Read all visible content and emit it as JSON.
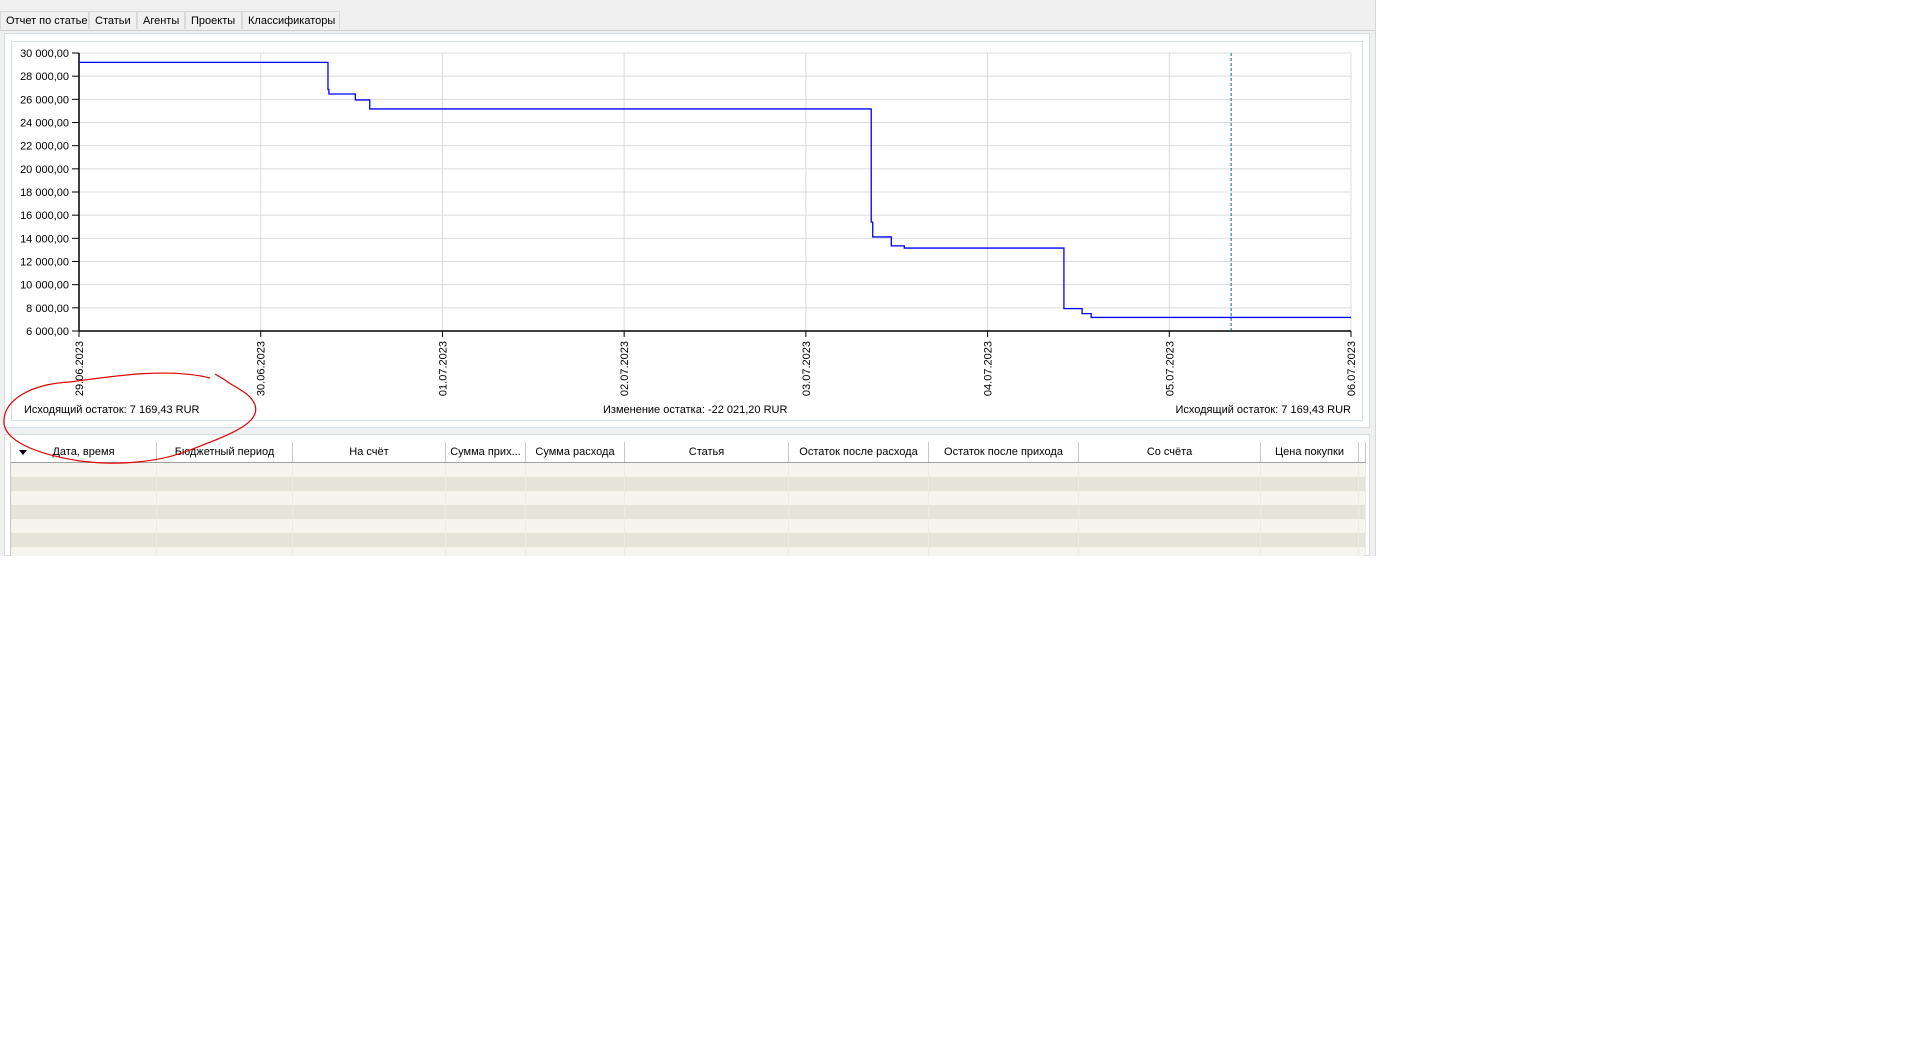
{
  "tabs": [
    {
      "label": "Отчет по статье",
      "active": false
    },
    {
      "label": "Статьи",
      "active": false
    },
    {
      "label": "Агенты",
      "active": false
    },
    {
      "label": "Проекты",
      "active": false
    },
    {
      "label": "Классификаторы",
      "active": false
    }
  ],
  "chart_data": {
    "type": "line",
    "step": true,
    "title": "",
    "xlabel": "",
    "ylabel": "",
    "ylim": [
      6000,
      30000
    ],
    "y_ticks": [
      "30 000,00",
      "28 000,00",
      "26 000,00",
      "24 000,00",
      "22 000,00",
      "20 000,00",
      "18 000,00",
      "16 000,00",
      "14 000,00",
      "12 000,00",
      "10 000,00",
      "8 000,00",
      "6 000,00"
    ],
    "y_tick_values": [
      30000,
      28000,
      26000,
      24000,
      22000,
      20000,
      18000,
      16000,
      14000,
      12000,
      10000,
      8000,
      6000
    ],
    "x_ticks": [
      "29.06.2023",
      "30.06.2023",
      "01.07.2023",
      "02.07.2023",
      "03.07.2023",
      "04.07.2023",
      "05.07.2023",
      "06.07.2023"
    ],
    "xlim": [
      "29.06.2023 00:00",
      "06.07.2023 00:00"
    ],
    "grid": true,
    "line_color": "#0000ff",
    "marker_line": {
      "x": "05.07.2023 08:10",
      "color": "#006b6b",
      "style": "dashed"
    },
    "series": [
      {
        "points": [
          [
            "29.06.2023 00:00",
            29190.63
          ],
          [
            "30.06.2023 08:53",
            26850
          ],
          [
            "30.06.2023 09:00",
            26460
          ],
          [
            "30.06.2023 12:30",
            25950
          ],
          [
            "30.06.2023 14:24",
            25170
          ],
          [
            "03.07.2023 08:38",
            15400
          ],
          [
            "03.07.2023 08:50",
            14120
          ],
          [
            "03.07.2023 11:17",
            13350
          ],
          [
            "03.07.2023 13:00",
            13160
          ],
          [
            "04.07.2023 10:05",
            7930
          ],
          [
            "04.07.2023 12:29",
            7500
          ],
          [
            "04.07.2023 13:41",
            7169.43
          ],
          [
            "06.07.2023 00:00",
            7169.43
          ]
        ]
      }
    ]
  },
  "summary": {
    "left": "Исходящий остаток: 7 169,43 RUR",
    "center": "Изменение остатка: -22 021,20 RUR",
    "right": "Исходящий остаток: 7 169,43 RUR"
  },
  "table": {
    "columns": [
      "Дата, время",
      "Бюджетный период",
      "На счёт",
      "Сумма прих...",
      "Сумма расхода",
      "Статья",
      "Остаток после расхода",
      "Остаток после прихода",
      "Со счёта",
      "Цена покупки"
    ],
    "sort_indicator": "sort-descending",
    "row_colors": [
      "#f5f4ee",
      "#e5e4d8"
    ]
  },
  "annotation": {
    "color": "#e00000",
    "shape": "hand-drawn ellipse"
  }
}
